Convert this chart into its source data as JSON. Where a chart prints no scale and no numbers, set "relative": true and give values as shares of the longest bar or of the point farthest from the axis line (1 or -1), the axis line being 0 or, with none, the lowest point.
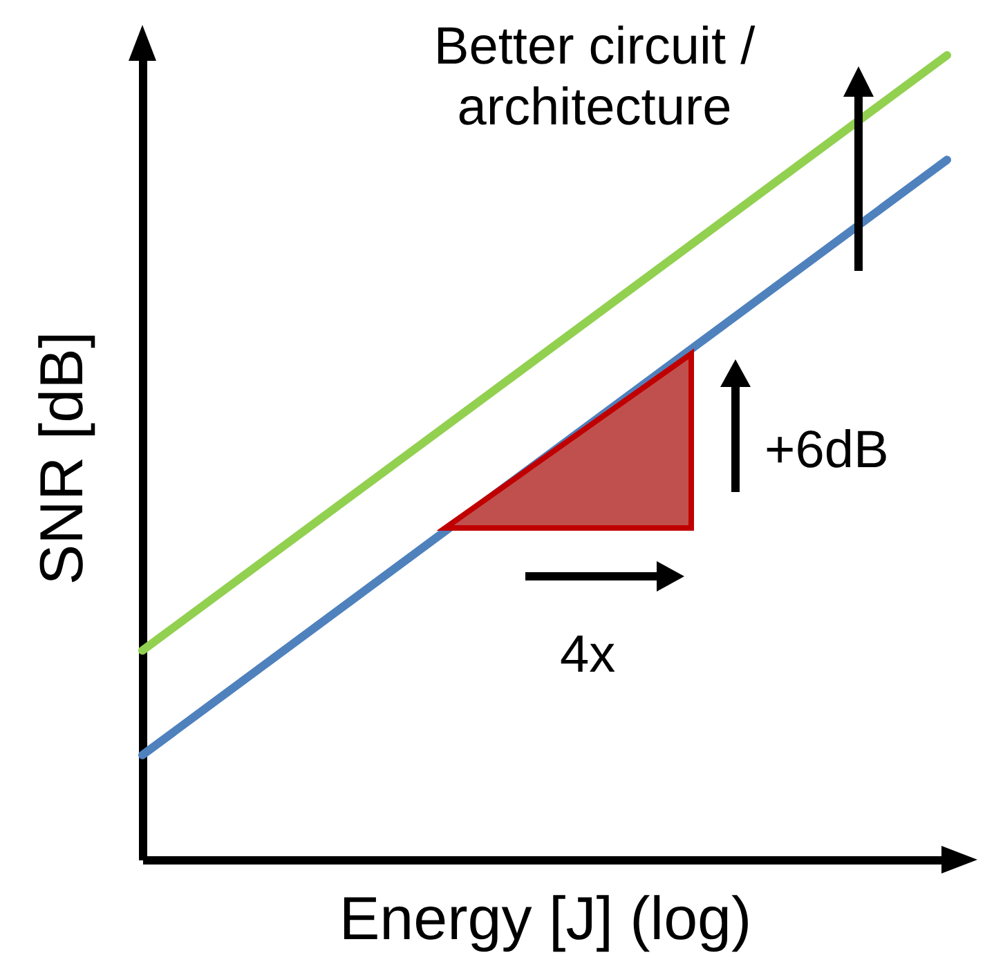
{
  "chart_data": {
    "type": "line",
    "relative": true,
    "xlabel": "Energy [J] (log)",
    "ylabel": "SNR [dB]",
    "categories": [
      null,
      null
    ],
    "series": [
      {
        "color": "#92d050",
        "values": [
          0.26,
          1
        ]
      },
      {
        "color": "#4f81bd",
        "values": [
          0.13,
          0.87
        ]
      }
    ],
    "line_style": "solid",
    "annotations": [
      "Better circuit / architecture",
      "+6dB",
      "4x"
    ]
  }
}
